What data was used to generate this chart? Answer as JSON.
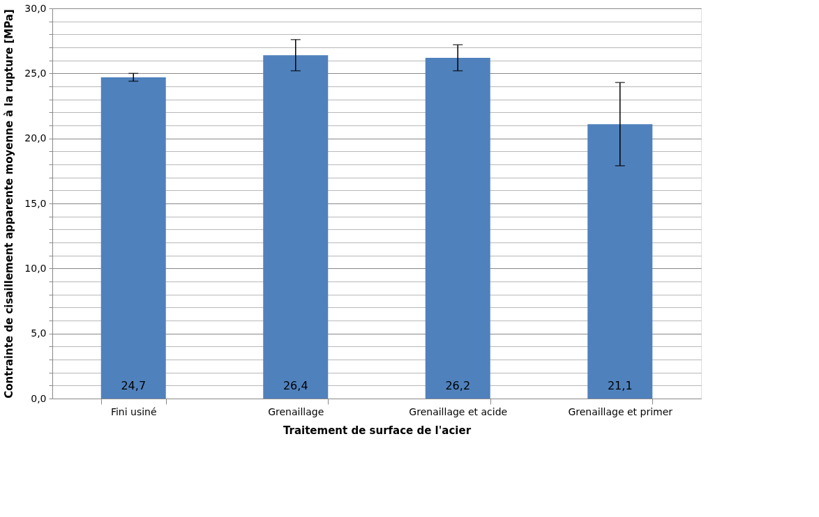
{
  "chart_data": {
    "type": "bar",
    "xlabel": "Traitement de surface de l'acier",
    "ylabel": "Contrainte de cisaillement apparente moyenne à la rupture  [MPa]",
    "categories": [
      "Fini usiné",
      "Grenaillage",
      "Grenaillage et acide",
      "Grenaillage et primer"
    ],
    "values": [
      24.7,
      26.4,
      26.2,
      21.1
    ],
    "value_labels": [
      "24,7",
      "26,4",
      "26,2",
      "21,1"
    ],
    "errors": [
      0.3,
      1.2,
      1.0,
      3.2
    ],
    "color": "#4f81bd",
    "ylim": [
      0,
      30
    ],
    "yticks": [
      {
        "value": 0,
        "label": "0,0"
      },
      {
        "value": 1,
        "label": null
      },
      {
        "value": 2,
        "label": null
      },
      {
        "value": 3,
        "label": null
      },
      {
        "value": 4,
        "label": null
      },
      {
        "value": 5,
        "label": "5,0"
      },
      {
        "value": 6,
        "label": null
      },
      {
        "value": 7,
        "label": null
      },
      {
        "value": 8,
        "label": null
      },
      {
        "value": 9,
        "label": null
      },
      {
        "value": 10,
        "label": "10,0"
      },
      {
        "value": 11,
        "label": null
      },
      {
        "value": 12,
        "label": null
      },
      {
        "value": 13,
        "label": null
      },
      {
        "value": 14,
        "label": null
      },
      {
        "value": 15,
        "label": "15,0"
      },
      {
        "value": 16,
        "label": null
      },
      {
        "value": 17,
        "label": null
      },
      {
        "value": 18,
        "label": null
      },
      {
        "value": 19,
        "label": null
      },
      {
        "value": 20,
        "label": "20,0"
      },
      {
        "value": 21,
        "label": null
      },
      {
        "value": 22,
        "label": null
      },
      {
        "value": 23,
        "label": null
      },
      {
        "value": 24,
        "label": null
      },
      {
        "value": 25,
        "label": "25,0"
      },
      {
        "value": 26,
        "label": null
      },
      {
        "value": 27,
        "label": null
      },
      {
        "value": 28,
        "label": null
      },
      {
        "value": 29,
        "label": null
      },
      {
        "value": 30,
        "label": "30,0"
      }
    ],
    "grid": true
  }
}
